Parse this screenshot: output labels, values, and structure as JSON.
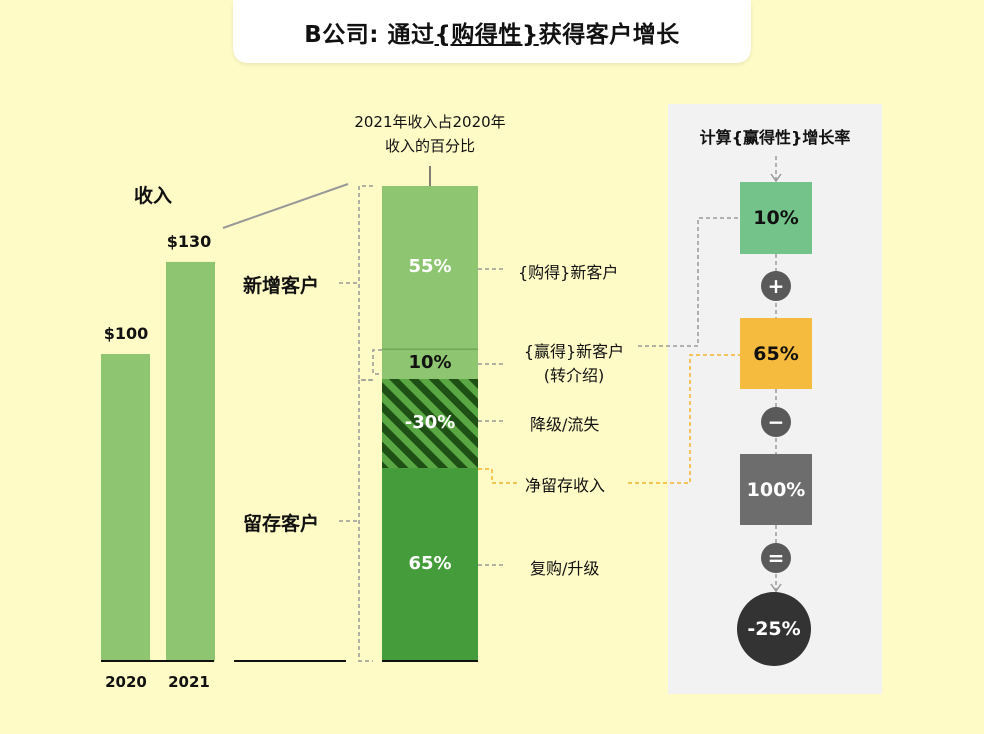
{
  "title": {
    "prefix": "B公司: 通过",
    "emph": "{购得性}",
    "suffix": "获得客户增长"
  },
  "colors": {
    "background": "#fffbc6",
    "light_green": "#8ec571",
    "dark_green": "#449c3a",
    "stripe_dark": "#1e4f14",
    "calc_green": "#74c38a",
    "calc_orange": "#f5bb3e",
    "calc_gray": "#6d6d6d",
    "result_dark": "#333333",
    "orange_line": "#f3b52d"
  },
  "chart_data": {
    "type": "bar",
    "revenue": {
      "title": "收入",
      "categories": [
        "2020",
        "2021"
      ],
      "values": [
        100,
        130
      ],
      "value_labels": [
        "$100",
        "$130"
      ]
    },
    "breakdown": {
      "title": "2021年收入占2020年收入的百分比",
      "title_line1": "2021年收入占2020年",
      "title_line2": "收入的百分比",
      "segments": [
        {
          "label": "55%",
          "value": 55,
          "note": "{购得}新客户"
        },
        {
          "label": "10%",
          "value": 10,
          "note": "{赢得}新客户",
          "note2": "(转介绍)"
        },
        {
          "label": "-30%",
          "value": -30,
          "note": "降级/流失"
        },
        {
          "label": "65%",
          "value": 65,
          "note": "复购/升级"
        }
      ],
      "group_new": "新增客户",
      "group_retained": "留存客户",
      "net_retention_label": "净留存收入"
    },
    "calculation": {
      "title": "计算{赢得性}增长率",
      "steps": [
        "10%",
        "+",
        "65%",
        "−",
        "100%",
        "=",
        "-25%"
      ]
    }
  }
}
